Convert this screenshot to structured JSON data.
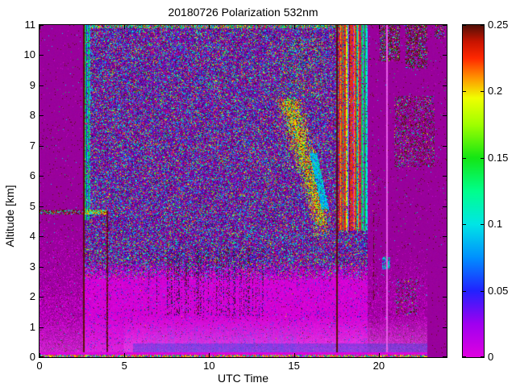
{
  "title": "20180726 Polarization 532nm",
  "axes": {
    "xlabel": "UTC Time",
    "ylabel": "Altitude [km]",
    "x_range": [
      0,
      24
    ],
    "y_range": [
      0,
      11
    ],
    "x_ticks": [
      0,
      5,
      10,
      15,
      20
    ],
    "y_ticks": [
      0,
      1,
      2,
      3,
      4,
      5,
      6,
      7,
      8,
      9,
      10,
      11
    ]
  },
  "colorbar": {
    "range": [
      0,
      0.25
    ],
    "tick_values": [
      0,
      0.05,
      0.1,
      0.15,
      0.2,
      0.25
    ],
    "tick_labels": [
      "0",
      "0.05",
      "0.1",
      "0.15",
      "0.2",
      "0.25"
    ],
    "gradient_stops": [
      [
        0.0,
        "#E000E0"
      ],
      [
        0.1,
        "#A000F0"
      ],
      [
        0.2,
        "#2222FF"
      ],
      [
        0.3,
        "#0090FF"
      ],
      [
        0.4,
        "#00E6E6"
      ],
      [
        0.5,
        "#00FF8C"
      ],
      [
        0.6,
        "#14E614"
      ],
      [
        0.7,
        "#A0FF00"
      ],
      [
        0.78,
        "#F0FF00"
      ],
      [
        0.84,
        "#FF9600"
      ],
      [
        0.9,
        "#FF2800"
      ],
      [
        0.95,
        "#C81400"
      ],
      [
        1.0,
        "#501008"
      ]
    ]
  },
  "chart_data": {
    "type": "heatmap",
    "title": "20180726 Polarization 532nm",
    "xlabel": "UTC Time",
    "ylabel": "Altitude [km]",
    "x_range": [
      0,
      24
    ],
    "y_range": [
      0,
      11
    ],
    "value_range": [
      0,
      0.25
    ],
    "background_value": 0.01,
    "palette": {
      "bg": "#99009C",
      "magBright": "#DE00DE",
      "magDot": "#C800C8",
      "lightMag": "#E95CE8",
      "glow": "#FFAAFF",
      "blue": "#2A2AE6",
      "blue2": "#4545FF",
      "indigo": "#1C1CB4",
      "cyan": "#00D2E6",
      "cyan2": "#00E8E8",
      "skyblue": "#0096FF",
      "green": "#00C855",
      "green2": "#2EE22E",
      "seafoam": "#00E090",
      "yellow": "#E6E600",
      "yellowgreen": "#AAD800",
      "orange": "#F0A000",
      "red": "#E63214",
      "red2": "#F06028",
      "darkred": "#5A100A",
      "darkred2": "#7A1A10",
      "darkpurple": "#6E0090",
      "darkpurple2": "#52007A",
      "darkpurple3": "#3E0064",
      "darkgreen": "#0A4614"
    },
    "zones": {
      "quiet_left_utc": [
        0,
        2.58
      ],
      "speckle_utc": [
        2.58,
        19.35
      ],
      "quiet_right_utc": [
        19.35,
        24
      ],
      "solid_corner": {
        "utc": [
          22.85,
          24
        ],
        "alt": [
          0,
          3.72
        ]
      },
      "magenta_below_alt_left": 4.6,
      "magenta_below_alt_right": 3.72,
      "speckle_to_magenta_alt": [
        2.55,
        3.2
      ],
      "top_dense_edge_alt": 10.88
    },
    "features": [
      {
        "type": "stripe_band",
        "name": "left-calibration-stripes",
        "utc": [
          2.58,
          3.0
        ],
        "alt": [
          4.55,
          11
        ],
        "colors": "green/cyan/blue vertical lines"
      },
      {
        "type": "vertical_line",
        "utc": 2.62,
        "alt": [
          0,
          11
        ],
        "value": 0.245
      },
      {
        "type": "vertical_line",
        "utc": 4.0,
        "alt": [
          0,
          4.85
        ],
        "value": 0.245
      },
      {
        "type": "horizontal_line",
        "alt": 4.8,
        "utc": [
          0,
          4.05
        ],
        "value_range": [
          0.1,
          0.25
        ]
      },
      {
        "type": "cloud",
        "name": "descending-cloud-layer",
        "utc": [
          13.8,
          17.3
        ],
        "alt": [
          4.35,
          8.55
        ],
        "path": [
          [
            14.75,
            8.4
          ],
          [
            16.6,
            4.55
          ]
        ],
        "value_range": [
          0.15,
          0.25
        ]
      },
      {
        "type": "cloud_core",
        "utc": [
          16.1,
          16.9
        ],
        "alt": [
          4.9,
          6.75
        ],
        "path": [
          [
            16.15,
            6.7
          ],
          [
            16.83,
            4.95
          ]
        ],
        "value": 0.1
      },
      {
        "type": "cloud_halo",
        "utc": [
          14.2,
          16.7
        ],
        "alt": [
          8.55,
          10.6
        ],
        "density": 0.15
      },
      {
        "type": "stripe_band",
        "name": "red-band",
        "utc": [
          17.62,
          18.85
        ],
        "alt": [
          4.2,
          11
        ],
        "colors": "red/orange vertical lines"
      },
      {
        "type": "stripe_band",
        "name": "green-band",
        "utc": [
          18.85,
          19.35
        ],
        "alt": [
          4.2,
          11
        ],
        "colors": "green/cyan vertical lines"
      },
      {
        "type": "vertical_line",
        "utc": 17.55,
        "alt": [
          0,
          11
        ],
        "value": 0.245
      },
      {
        "type": "vertical_line_bright",
        "utc": 20.5,
        "alt": [
          0,
          11
        ],
        "value": 0.002
      },
      {
        "type": "dotted_line",
        "utc": 19.7,
        "alt": [
          1.9,
          5.1
        ],
        "value": 0.24
      },
      {
        "type": "blob",
        "utc": [
          20.22,
          20.68
        ],
        "alt": [
          2.9,
          3.3
        ],
        "value": 0.1
      },
      {
        "type": "surface_blue_band",
        "utc": [
          5.5,
          22.85
        ],
        "alt": [
          0,
          0.45
        ],
        "value_range": [
          0.03,
          0.06
        ]
      },
      {
        "type": "blue_streaks",
        "utc": [
          6.3,
          15.2
        ],
        "alt": [
          0.3,
          1.25
        ]
      },
      {
        "type": "dark_streak_dots",
        "utc": [
          6.3,
          13.6
        ],
        "alt": [
          1.35,
          3.6
        ]
      },
      {
        "type": "bottom_rainbow_line",
        "utc": [
          0,
          22.85
        ],
        "alt": [
          0,
          0.07
        ],
        "value_range": [
          0.1,
          0.25
        ]
      },
      {
        "type": "bottom_magenta_line",
        "utc": [
          0,
          22.85
        ],
        "alt": [
          0.07,
          0.155
        ],
        "value": 0.001
      }
    ],
    "patches": [
      {
        "utc": [
          20.05,
          21.25
        ],
        "alt": [
          9.8,
          11.0
        ],
        "density": 0.55
      },
      {
        "utc": [
          21.6,
          22.85
        ],
        "alt": [
          9.55,
          11.0
        ],
        "density": 0.5
      },
      {
        "utc": [
          20.9,
          23.3
        ],
        "alt": [
          6.3,
          8.65
        ],
        "density": 0.3
      },
      {
        "utc": [
          21.0,
          22.3
        ],
        "alt": [
          1.4,
          2.6
        ],
        "density": 0.25
      },
      {
        "utc": [
          23.3,
          23.9
        ],
        "alt": [
          10.55,
          11.0
        ],
        "density": 0.4
      },
      {
        "utc": [
          19.5,
          20.1
        ],
        "alt": [
          4.4,
          6.2
        ],
        "density": 0.06
      }
    ]
  }
}
